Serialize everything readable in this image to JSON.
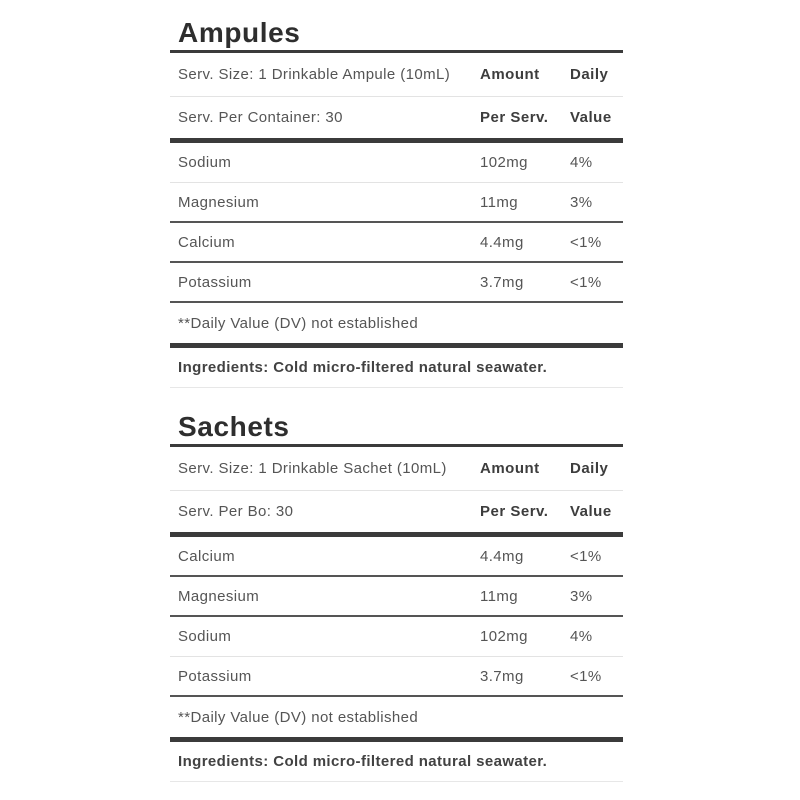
{
  "colors": {
    "rule_dark": "#3b3b3b",
    "divider_light": "#e3e3e3",
    "divider_dark": "#555555",
    "heading_text": "#2e2e2e",
    "body_text": "#555555"
  },
  "sections": [
    {
      "title": "Ampules",
      "serv_size": "Serv. Size: 1 Drinkable Ampule (10mL)",
      "serv_per": "Serv. Per Container: 30",
      "amount_header": "Amount",
      "amount_subheader": "Per Serv.",
      "daily_header": "Daily",
      "daily_subheader": "Value",
      "rows": [
        {
          "name": "Sodium",
          "amount": "102mg",
          "daily": "4%"
        },
        {
          "name": "Magnesium",
          "amount": "11mg",
          "daily": "3%"
        },
        {
          "name": "Calcium",
          "amount": "4.4mg",
          "daily": "<1%"
        },
        {
          "name": "Potassium",
          "amount": "3.7mg",
          "daily": "<1%"
        }
      ],
      "footnote": "**Daily Value (DV) not established",
      "ingredients": "Ingredients: Cold micro-filtered natural seawater."
    },
    {
      "title": "Sachets",
      "serv_size": "Serv. Size: 1 Drinkable Sachet (10mL)",
      "serv_per": "Serv. Per Bo: 30",
      "amount_header": "Amount",
      "amount_subheader": "Per Serv.",
      "daily_header": "Daily",
      "daily_subheader": "Value",
      "rows": [
        {
          "name": "Calcium",
          "amount": "4.4mg",
          "daily": "<1%"
        },
        {
          "name": "Magnesium",
          "amount": "11mg",
          "daily": "3%"
        },
        {
          "name": "Sodium",
          "amount": "102mg",
          "daily": "4%"
        },
        {
          "name": "Potassium",
          "amount": "3.7mg",
          "daily": "<1%"
        }
      ],
      "footnote": "**Daily Value (DV) not established",
      "ingredients": "Ingredients: Cold micro-filtered natural seawater."
    }
  ]
}
